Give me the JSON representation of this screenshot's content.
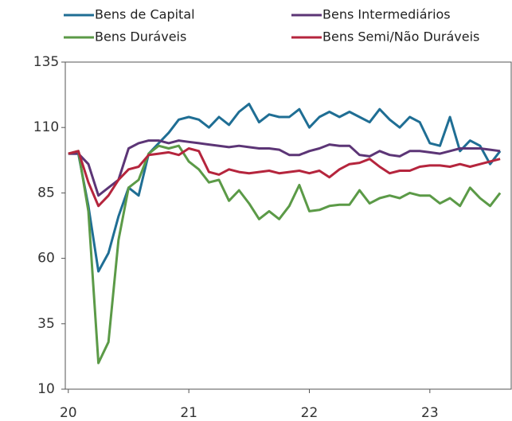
{
  "chart_data": {
    "type": "line",
    "x": [
      0,
      1,
      2,
      3,
      4,
      5,
      6,
      7,
      8,
      9,
      10,
      11,
      12,
      13,
      14,
      15,
      16,
      17,
      18,
      19,
      20,
      21,
      22,
      23,
      24,
      25,
      26,
      27,
      28,
      29,
      30,
      31,
      32,
      33,
      34,
      35,
      36,
      37,
      38,
      39,
      40,
      41,
      42,
      43
    ],
    "xlim": [
      -0.3,
      44.1
    ],
    "xticks": [
      {
        "value": 0,
        "label": "20"
      },
      {
        "value": 12,
        "label": "21"
      },
      {
        "value": 24,
        "label": "22"
      },
      {
        "value": 36,
        "label": "23"
      }
    ],
    "ylim": [
      10,
      135
    ],
    "yticks": [
      10,
      35,
      60,
      85,
      110,
      135
    ],
    "grid": false,
    "series": [
      {
        "name": "Bens de Capital",
        "color": "#1f6e94",
        "values": [
          100,
          100,
          80,
          55,
          62,
          76,
          87,
          84,
          100,
          104,
          108,
          113,
          114,
          113,
          110,
          114,
          111,
          116,
          119,
          112,
          115,
          114,
          114,
          117,
          110,
          114,
          116,
          114,
          116,
          114,
          112,
          117,
          113,
          110,
          114,
          112,
          104,
          103,
          114,
          101,
          105,
          103,
          96,
          101
        ]
      },
      {
        "name": "Bens Intermediários",
        "color": "#5c3576",
        "values": [
          100,
          100,
          96,
          84,
          87,
          90,
          102,
          104,
          105,
          105,
          104,
          105,
          104.5,
          104,
          103.5,
          103,
          102.5,
          103,
          102.5,
          102,
          102,
          101.5,
          99.5,
          99.5,
          101,
          102,
          103.5,
          103,
          103,
          99.5,
          99,
          101,
          99.5,
          99,
          101,
          101,
          100.5,
          100,
          101,
          102,
          102,
          102,
          101.5,
          101
        ]
      },
      {
        "name": "Bens Duráveis",
        "color": "#5b9a47",
        "values": [
          100,
          101,
          78,
          20,
          28,
          67,
          87,
          90,
          100,
          103,
          102,
          103,
          97,
          94,
          89,
          90,
          82,
          86,
          81,
          75,
          78,
          75,
          80,
          88,
          78,
          78.5,
          80,
          80.5,
          80.5,
          86,
          81,
          83,
          84,
          83,
          85,
          84,
          84,
          81,
          83,
          80,
          87,
          83,
          80,
          85
        ]
      },
      {
        "name": "Bens Semi/Não Duráveis",
        "color": "#b5253d",
        "values": [
          100,
          101,
          89,
          80,
          84,
          90,
          94,
          95,
          99.5,
          100,
          100.5,
          99.5,
          102,
          101,
          93,
          92,
          94,
          93,
          92.5,
          93,
          93.5,
          92.5,
          93,
          93.5,
          92.5,
          93.5,
          91,
          94,
          96,
          96.5,
          98,
          95,
          92.5,
          93.5,
          93.5,
          95,
          95.5,
          95.5,
          95,
          96,
          95,
          96,
          97,
          98
        ]
      }
    ]
  }
}
